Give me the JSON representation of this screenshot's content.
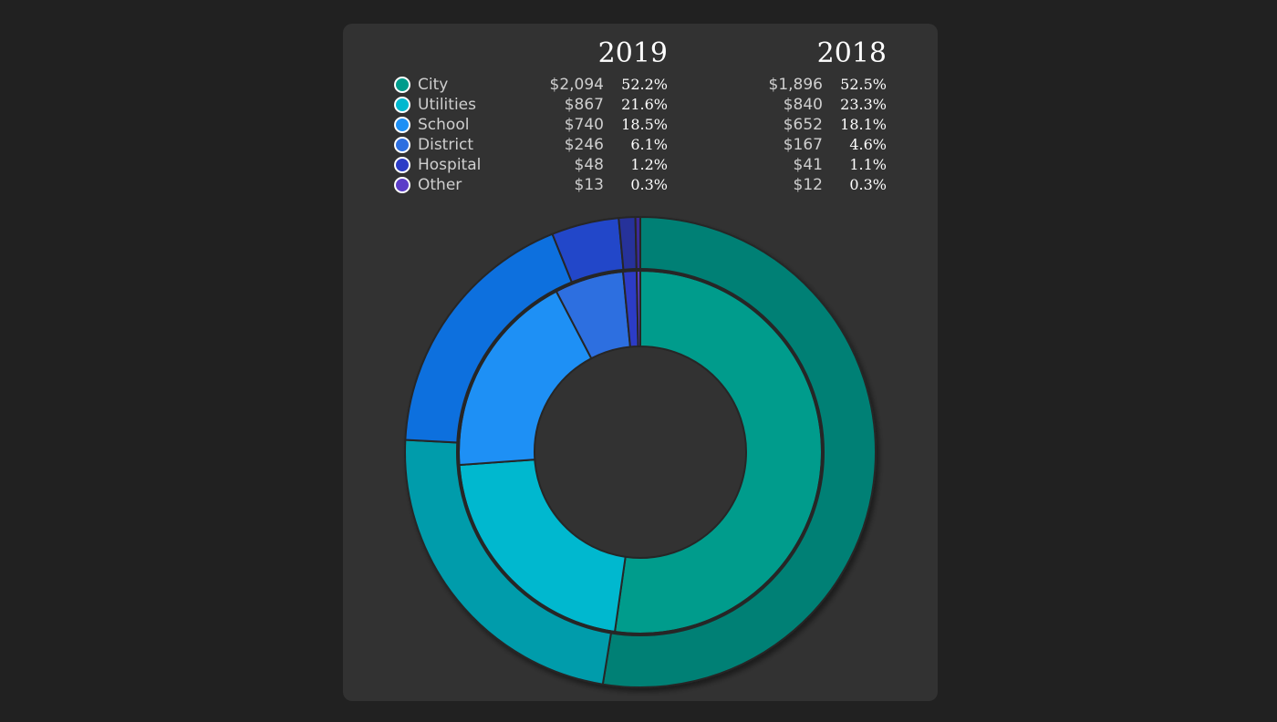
{
  "chart_data": {
    "type": "pie",
    "variant": "nested-donut",
    "categories": [
      "City",
      "Utilities",
      "School",
      "District",
      "Hospital",
      "Other"
    ],
    "colors": [
      "#009c8c",
      "#00b8cf",
      "#1e90f5",
      "#2d6fe0",
      "#2c3cc6",
      "#5b3dc8"
    ],
    "outer_colors": [
      "#008074",
      "#009cab",
      "#0e6fde",
      "#2346c9",
      "#28309a",
      "#3b2c99"
    ],
    "series": [
      {
        "name": "2019",
        "ring": "inner",
        "values": [
          2094,
          867,
          740,
          246,
          48,
          13
        ],
        "value_labels": [
          "$2,094",
          "$867",
          "$740",
          "$246",
          "$48",
          "$13"
        ],
        "percent_labels": [
          "52.2%",
          "21.6%",
          "18.5%",
          "6.1%",
          "1.2%",
          "0.3%"
        ]
      },
      {
        "name": "2018",
        "ring": "outer",
        "values": [
          1896,
          840,
          652,
          167,
          41,
          12
        ],
        "value_labels": [
          "$1,896",
          "$840",
          "$652",
          "$167",
          "$41",
          "$12"
        ],
        "percent_labels": [
          "52.5%",
          "23.3%",
          "18.1%",
          "4.6%",
          "1.1%",
          "0.3%"
        ]
      }
    ],
    "legend": "top"
  }
}
